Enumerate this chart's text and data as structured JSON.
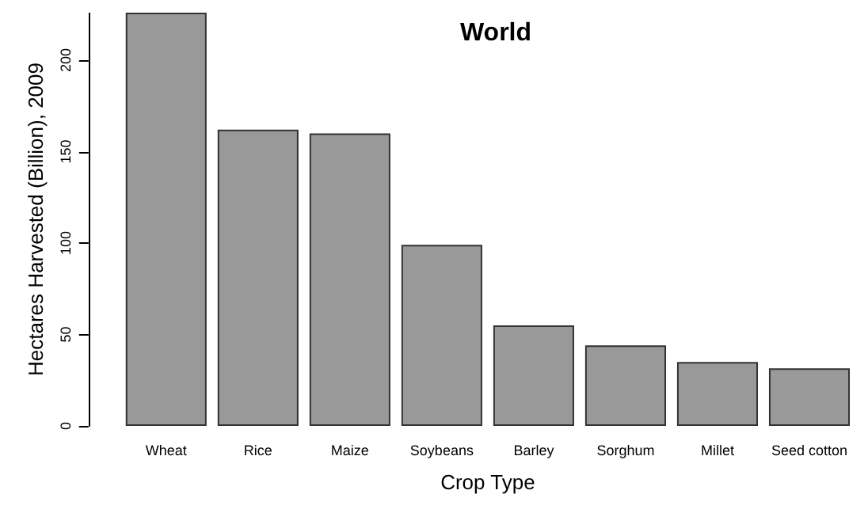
{
  "chart_data": {
    "type": "bar",
    "title": "World",
    "xlabel": "Crop Type",
    "ylabel": "Hectares Harvested (Billion), 2009",
    "categories": [
      "Wheat",
      "Rice",
      "Maize",
      "Soybeans",
      "Barley",
      "Sorghum",
      "Millet",
      "Seed cotton"
    ],
    "values": [
      226,
      162,
      160,
      99,
      55,
      44,
      35,
      31.5
    ],
    "color": "#999999",
    "ylim": [
      0,
      226
    ],
    "yticks": [
      0,
      50,
      100,
      150,
      200
    ],
    "grid": false
  }
}
